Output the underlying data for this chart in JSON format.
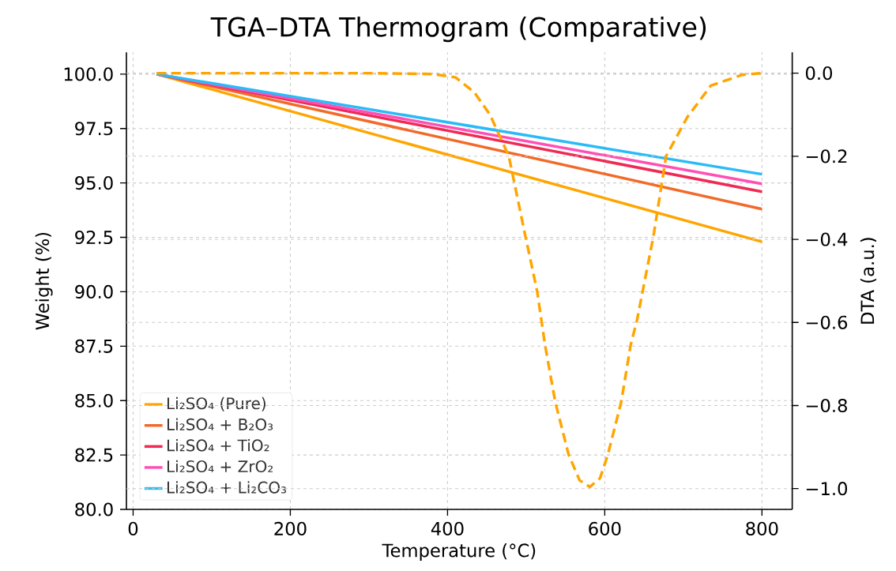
{
  "chart_data": {
    "type": "line",
    "title": "TGA–DTA Thermogram (Comparative)",
    "xlabel": "Temperature (°C)",
    "ylabel": "Weight (%)",
    "y2label": "DTA (a.u.)",
    "xlim": [
      -8.5,
      838.5
    ],
    "ylim": [
      80,
      101
    ],
    "y2lim": [
      -1.05,
      0.05
    ],
    "xticks": [
      0,
      200,
      400,
      600,
      800
    ],
    "yticks": [
      {
        "value": 80,
        "label": "80.0"
      },
      {
        "value": 82.5,
        "label": "82.5"
      },
      {
        "value": 85,
        "label": "85.0"
      },
      {
        "value": 87.5,
        "label": "87.5"
      },
      {
        "value": 90,
        "label": "90.0"
      },
      {
        "value": 92.5,
        "label": "92.5"
      },
      {
        "value": 95,
        "label": "95.0"
      },
      {
        "value": 97.5,
        "label": "97.5"
      },
      {
        "value": 100,
        "label": "100.0"
      }
    ],
    "y2ticks": [
      {
        "value": 0,
        "label": "0.0"
      },
      {
        "value": -0.2,
        "label": "−0.2"
      },
      {
        "value": -0.4,
        "label": "−0.4"
      },
      {
        "value": -0.6,
        "label": "−0.6"
      },
      {
        "value": -0.8,
        "label": "−0.8"
      },
      {
        "value": -1.0,
        "label": "−1.0"
      }
    ],
    "grid": true,
    "legend": "bottom left",
    "series": [
      {
        "name": "Li₂SO₄ (Pure)",
        "color": "#ffa500",
        "line_style": "solid",
        "x": [
          30,
          800
        ],
        "values": [
          100,
          92.3
        ]
      },
      {
        "name": "Li₂SO₄ + B₂O₃",
        "color": "#f26a2a",
        "line_style": "solid",
        "x": [
          30,
          800
        ],
        "values": [
          100,
          93.8
        ]
      },
      {
        "name": "Li₂SO₄ + TiO₂",
        "color": "#ee2a55",
        "line_style": "solid",
        "x": [
          30,
          800
        ],
        "values": [
          100,
          94.6
        ]
      },
      {
        "name": "Li₂SO₄ + ZrO₂",
        "color": "#ff4fb4",
        "line_style": "solid",
        "x": [
          30,
          800
        ],
        "values": [
          100,
          94.96
        ]
      },
      {
        "name": "Li₂SO₄ + Li₂CO₃",
        "color": "#29bbf8",
        "line_style": "solid",
        "x": [
          30,
          800
        ],
        "values": [
          100,
          95.4
        ]
      },
      {
        "color": "#ffa500",
        "line_style": "dashed",
        "axis": "y2",
        "x": [
          30,
          100,
          200,
          300,
          380,
          410,
          434,
          454,
          478,
          499,
          514,
          524,
          537,
          554,
          568,
          581,
          594,
          604,
          621,
          633,
          641,
          662,
          678,
          705,
          735,
          775,
          800
        ],
        "values": [
          0,
          0,
          0,
          0,
          -0.002,
          -0.01,
          -0.046,
          -0.1,
          -0.2,
          -0.392,
          -0.525,
          -0.654,
          -0.791,
          -0.918,
          -0.98,
          -0.996,
          -0.975,
          -0.918,
          -0.791,
          -0.654,
          -0.595,
          -0.392,
          -0.2,
          -0.106,
          -0.03,
          -0.004,
          0
        ]
      }
    ]
  }
}
